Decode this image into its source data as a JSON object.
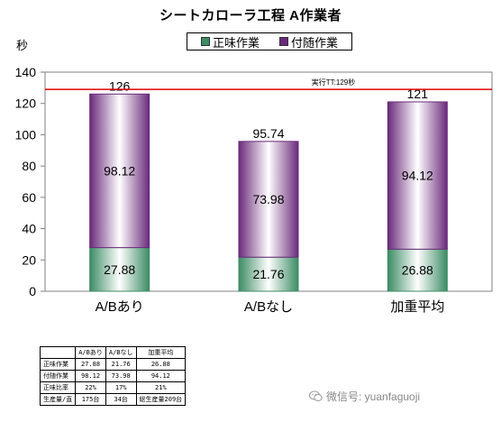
{
  "chart_data": {
    "type": "bar",
    "stacked": true,
    "title": "シートカローラ工程 A作業者",
    "ylabel": "秒",
    "xlabel": "",
    "ylim": [
      0,
      140
    ],
    "yticks": [
      0,
      20,
      40,
      60,
      80,
      100,
      120,
      140
    ],
    "grid": false,
    "legend_position": "top-center",
    "categories": [
      "A/Bあり",
      "A/Bなし",
      "加重平均"
    ],
    "totals": [
      "126",
      "95.74",
      "121"
    ],
    "series": [
      {
        "name": "正味作業",
        "values": [
          27.88,
          21.76,
          26.88
        ],
        "labels": [
          "27.88",
          "21.76",
          "26.88"
        ],
        "color": "#3c8c64"
      },
      {
        "name": "付随作業",
        "values": [
          98.12,
          73.98,
          94.12
        ],
        "labels": [
          "98.12",
          "73.98",
          "94.12"
        ],
        "color": "#6a2a7a"
      }
    ],
    "reference_line": {
      "value": 129,
      "label": "実行TT:129秒",
      "color": "#e00000"
    }
  },
  "table": {
    "headers": [
      "",
      "A/Bあり",
      "A/Bなし",
      "加重平均"
    ],
    "rows": [
      [
        "正味作業",
        "27.88",
        "21.76",
        "26.88"
      ],
      [
        "付随作業",
        "98.12",
        "73.98",
        "94.12"
      ],
      [
        "正味比率",
        "22%",
        "17%",
        "21%"
      ],
      [
        "生産量/直",
        "175台",
        "34台",
        "総生産量209台"
      ]
    ]
  },
  "watermark": {
    "text": "微信号: yuanfaguoji",
    "icon": "wechat-icon"
  }
}
